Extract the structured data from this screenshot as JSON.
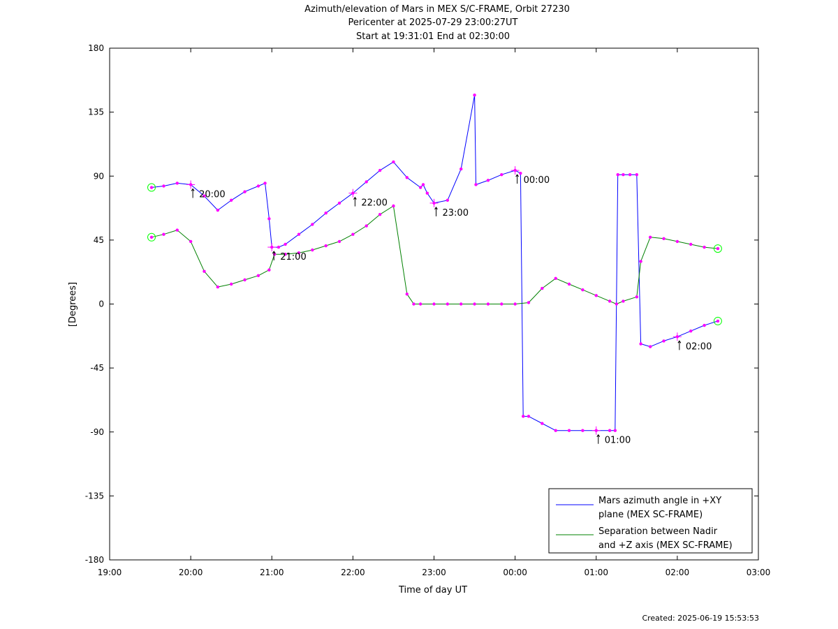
{
  "chart_data": {
    "type": "line",
    "title": [
      "Azimuth/elevation of Mars in MEX S/C-FRAME,  Orbit 27230",
      "Pericenter at 2025-07-29 23:00:27UT",
      "Start at 19:31:01 End at 02:30:00"
    ],
    "xlabel": "Time of day UT",
    "ylabel": "[Degrees]",
    "xlim": [
      "19:00",
      "03:00"
    ],
    "ylim": [
      -180,
      180
    ],
    "x_ticks": [
      "19:00",
      "20:00",
      "21:00",
      "22:00",
      "23:00",
      "00:00",
      "01:00",
      "02:00",
      "03:00"
    ],
    "y_ticks": [
      180,
      135,
      90,
      45,
      0,
      -45,
      -90,
      -135,
      -180
    ],
    "grid": false,
    "legend_position": "bottom-right",
    "colors": {
      "azimuth": "#0000ff",
      "separation": "#008000",
      "markers": "#ff00ff",
      "endpoints": "#00ff00"
    },
    "series": [
      {
        "name": "Mars azimuth angle in +XY plane (MEX SC-FRAME)",
        "legend_lines": [
          "Mars azimuth angle in +XY",
          "plane (MEX SC-FRAME)"
        ],
        "color": "#0000ff",
        "x": [
          "19:31",
          "19:40",
          "19:50",
          "20:00",
          "20:10",
          "20:20",
          "20:30",
          "20:40",
          "20:50",
          "20:55",
          "20:58",
          "21:00",
          "21:05",
          "21:10",
          "21:20",
          "21:30",
          "21:40",
          "21:50",
          "22:00",
          "22:10",
          "22:20",
          "22:30",
          "22:40",
          "22:50",
          "22:52",
          "22:55",
          "23:00",
          "23:10",
          "23:20",
          "23:30",
          "23:31",
          "23:40",
          "23:50",
          "00:00",
          "00:04",
          "00:06",
          "00:10",
          "00:20",
          "00:30",
          "00:40",
          "00:50",
          "01:00",
          "01:10",
          "01:14",
          "01:16",
          "01:20",
          "01:25",
          "01:30",
          "01:33",
          "01:40",
          "01:50",
          "02:00",
          "02:10",
          "02:20",
          "02:30"
        ],
        "values": [
          82,
          83,
          85,
          84,
          76,
          66,
          73,
          79,
          83,
          85,
          60,
          40,
          40,
          42,
          49,
          56,
          64,
          71,
          78,
          86,
          94,
          100,
          89,
          82,
          84,
          78,
          71,
          73,
          95,
          147,
          84,
          87,
          91,
          94,
          92,
          -79,
          -79,
          -84,
          -89,
          -89,
          -89,
          -89,
          -89,
          -89,
          91,
          91,
          91,
          91,
          -28,
          -30,
          -26,
          -23,
          -19,
          -15,
          -12
        ]
      },
      {
        "name": "Separation between Nadir and +Z axis (MEX SC-FRAME)",
        "legend_lines": [
          "Separation between Nadir",
          "and +Z axis (MEX SC-FRAME)"
        ],
        "color": "#008000",
        "x": [
          "19:31",
          "19:40",
          "19:50",
          "20:00",
          "20:10",
          "20:20",
          "20:30",
          "20:40",
          "20:50",
          "20:58",
          "21:02",
          "21:10",
          "21:20",
          "21:30",
          "21:40",
          "21:50",
          "22:00",
          "22:10",
          "22:20",
          "22:30",
          "22:40",
          "22:45",
          "22:50",
          "23:00",
          "23:10",
          "23:20",
          "23:30",
          "23:40",
          "23:50",
          "00:00",
          "00:10",
          "00:20",
          "00:30",
          "00:40",
          "00:50",
          "01:00",
          "01:10",
          "01:15",
          "01:20",
          "01:30",
          "01:33",
          "01:40",
          "01:50",
          "02:00",
          "02:10",
          "02:20",
          "02:30"
        ],
        "values": [
          47,
          49,
          52,
          44,
          23,
          12,
          14,
          17,
          20,
          24,
          35,
          35,
          36,
          38,
          41,
          44,
          49,
          55,
          63,
          69,
          7,
          0,
          0,
          0,
          0,
          0,
          0,
          0,
          0,
          0,
          1,
          11,
          18,
          14,
          10,
          6,
          2,
          0,
          2,
          5,
          30,
          47,
          46,
          44,
          42,
          40,
          39
        ]
      }
    ],
    "time_annotations": [
      {
        "label": "20:00",
        "time": "20:00",
        "value": 84
      },
      {
        "label": "21:00",
        "time": "21:00",
        "value": 40
      },
      {
        "label": "22:00",
        "time": "22:00",
        "value": 78
      },
      {
        "label": "23:00",
        "time": "23:00",
        "value": 71
      },
      {
        "label": "00:00",
        "time": "00:00",
        "value": 94
      },
      {
        "label": "01:00",
        "time": "01:00",
        "value": -89
      },
      {
        "label": "02:00",
        "time": "02:00",
        "value": -23
      }
    ],
    "created": "Created: 2025-06-19 15:53:53"
  }
}
